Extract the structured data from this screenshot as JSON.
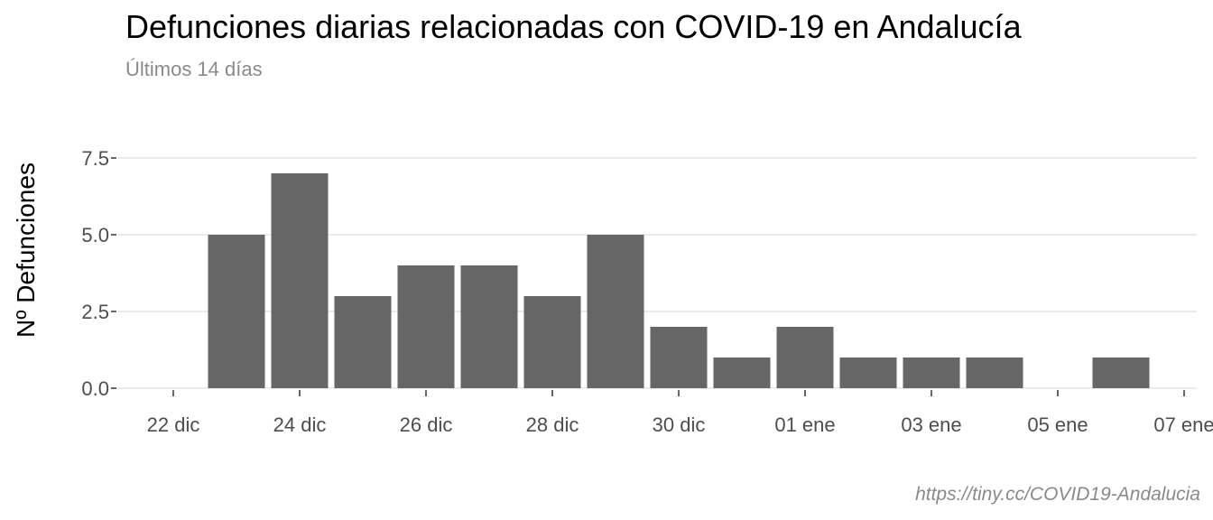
{
  "chart_data": {
    "type": "bar",
    "title": "Defunciones diarias relacionadas con COVID-19 en Andalucía",
    "subtitle": "Últimos 14 días",
    "caption": "https://tiny.cc/COVID19-Andalucia",
    "xlabel": "",
    "ylabel": "Nº Defunciones",
    "categories": [
      "2020-12-23",
      "2020-12-24",
      "2020-12-25",
      "2020-12-26",
      "2020-12-27",
      "2020-12-28",
      "2020-12-29",
      "2020-12-30",
      "2020-12-31",
      "2021-01-01",
      "2021-01-02",
      "2021-01-03",
      "2021-01-04",
      "2021-01-05",
      "2021-01-06"
    ],
    "values": [
      5,
      7,
      3,
      4,
      4,
      3,
      5,
      2,
      1,
      2,
      1,
      1,
      1,
      0,
      1
    ],
    "ylim": [
      0,
      7.5
    ],
    "y_ticks": [
      "0.0",
      "2.5",
      "5.0",
      "7.5"
    ],
    "x_ticks": [
      "22 dic",
      "24 dic",
      "26 dic",
      "28 dic",
      "30 dic",
      "01 ene",
      "03 ene",
      "05 ene",
      "07 ene"
    ],
    "x_tick_dates": [
      "2020-12-22",
      "2020-12-24",
      "2020-12-26",
      "2020-12-28",
      "2020-12-30",
      "2021-01-01",
      "2021-01-03",
      "2021-01-05",
      "2021-01-07"
    ],
    "grid": true,
    "legend": "none",
    "bar_color": "#666666",
    "grid_color": "#ebebeb"
  }
}
